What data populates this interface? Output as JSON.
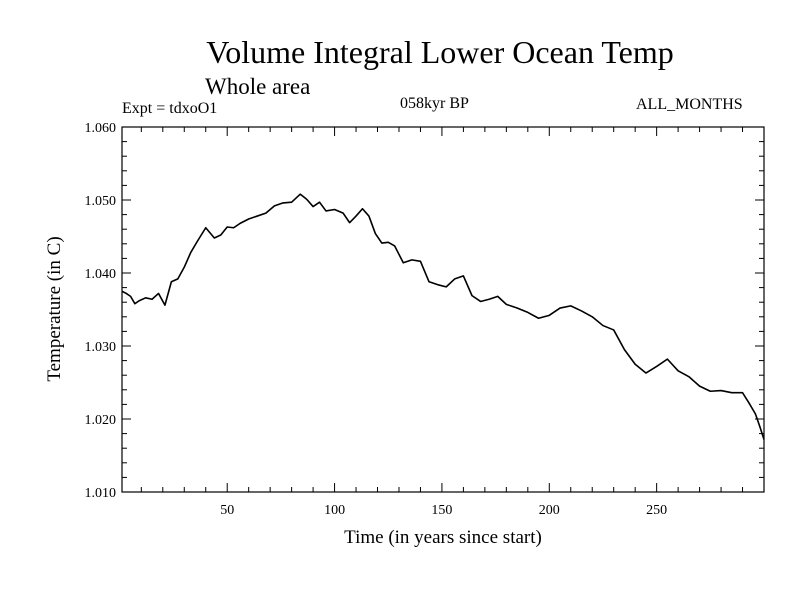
{
  "header": {
    "title": "Volume Integral Lower Ocean Temp",
    "subtitle": "Whole area",
    "experiment": "Expt = tdxoO1",
    "period": "058kyr BP",
    "months": "ALL_MONTHS"
  },
  "chart_data": {
    "type": "line",
    "title": "Volume Integral Lower Ocean Temp",
    "xlabel": "Time (in years since start)",
    "ylabel": "Temperature (in C)",
    "xlim": [
      1,
      300
    ],
    "ylim": [
      1.01,
      1.06
    ],
    "x_ticks": [
      50,
      100,
      150,
      200,
      250
    ],
    "y_ticks": [
      1.01,
      1.02,
      1.03,
      1.04,
      1.05,
      1.06
    ],
    "y_tick_labels": [
      "1.010",
      "1.020",
      "1.030",
      "1.040",
      "1.050",
      "1.060"
    ],
    "grid": false,
    "series": [
      {
        "name": "Volume Integral Lower Ocean Temp",
        "color": "#000000",
        "x": [
          1,
          3,
          5,
          7,
          9,
          12,
          15,
          18,
          21,
          24,
          27,
          30,
          33,
          36,
          40,
          44,
          47,
          50,
          53,
          56,
          60,
          64,
          68,
          72,
          76,
          80,
          84,
          87,
          90,
          93,
          96,
          100,
          104,
          107,
          110,
          113,
          116,
          119,
          122,
          125,
          128,
          132,
          136,
          140,
          144,
          148,
          152,
          156,
          160,
          164,
          168,
          172,
          176,
          180,
          185,
          190,
          195,
          200,
          205,
          210,
          215,
          220,
          225,
          230,
          235,
          240,
          245,
          250,
          255,
          260,
          265,
          270,
          275,
          280,
          285,
          290,
          293,
          296,
          298,
          300
        ],
        "values": [
          1.0375,
          1.0372,
          1.0368,
          1.0358,
          1.0362,
          1.0366,
          1.0364,
          1.0372,
          1.0356,
          1.0388,
          1.0392,
          1.0408,
          1.0428,
          1.0443,
          1.0462,
          1.0448,
          1.0452,
          1.0463,
          1.0462,
          1.0468,
          1.0474,
          1.0478,
          1.0482,
          1.0492,
          1.0496,
          1.0497,
          1.0508,
          1.0501,
          1.0491,
          1.0497,
          1.0485,
          1.0487,
          1.0482,
          1.0469,
          1.0478,
          1.0488,
          1.0478,
          1.0454,
          1.0441,
          1.0442,
          1.0437,
          1.0414,
          1.0418,
          1.0416,
          1.0388,
          1.0384,
          1.0381,
          1.0392,
          1.0396,
          1.0369,
          1.0361,
          1.0364,
          1.0368,
          1.0357,
          1.0352,
          1.0346,
          1.0338,
          1.0342,
          1.0352,
          1.0355,
          1.0348,
          1.034,
          1.0328,
          1.0322,
          1.0295,
          1.0275,
          1.0263,
          1.0272,
          1.0282,
          1.0266,
          1.0258,
          1.0245,
          1.0238,
          1.0239,
          1.0236,
          1.0236,
          1.0222,
          1.0207,
          1.019,
          1.0172
        ]
      }
    ]
  }
}
